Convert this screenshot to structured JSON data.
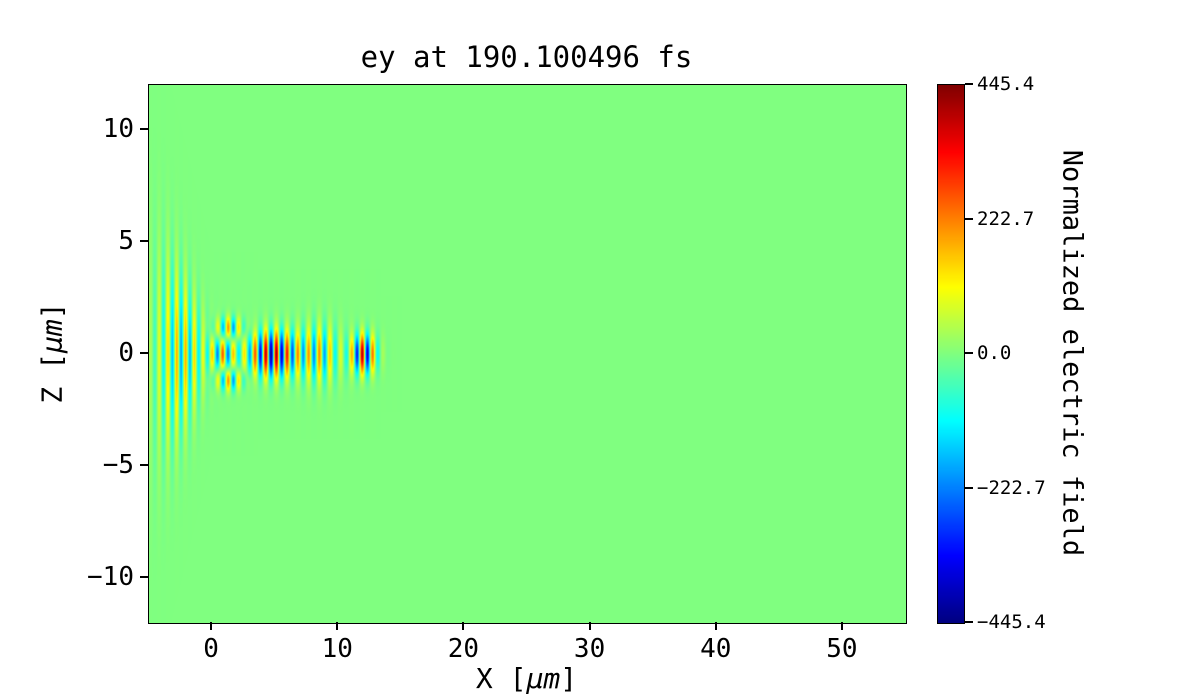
{
  "figure": {
    "title": "ey at 190.100496 fs",
    "xlabel": {
      "pre": "X [",
      "unit": "μm",
      "post": "]"
    },
    "ylabel": {
      "pre": "Z [",
      "unit": "μm",
      "post": "]"
    },
    "colorbar_label": "Normalized electric field"
  },
  "chart_data": {
    "type": "heatmap",
    "title": "ey at 190.100496 fs",
    "field_name": "ey",
    "time_fs": 190.100496,
    "xlabel": "X [μm]",
    "ylabel": "Z [μm]",
    "colorbar_label": "Normalized electric field",
    "colormap": "jet",
    "x_range": [
      -5,
      55
    ],
    "z_range": [
      -12,
      12
    ],
    "x_ticks": [
      0,
      10,
      20,
      30,
      40,
      50
    ],
    "x_tick_labels": [
      "0",
      "10",
      "20",
      "30",
      "40",
      "50"
    ],
    "z_ticks": [
      10,
      5,
      0,
      -5,
      -10
    ],
    "z_tick_labels": [
      "10",
      "5",
      "0",
      "−5",
      "−10"
    ],
    "value_range": [
      -445.4,
      445.4
    ],
    "colorbar_ticks": [
      445.4,
      222.7,
      0.0,
      -222.7,
      -445.4
    ],
    "colorbar_tick_labels": [
      "445.4",
      "222.7",
      "0.0",
      "−222.7",
      "−445.4"
    ],
    "background_value": 0.0,
    "grid": false,
    "field_model": {
      "description": "Laser pulse electric field ey: a strong oscillatory wavepacket (alternating red/blue half-cycle stripes, peak |ey| ≈ 445) centered on z = 0 spanning x ≈ 0–13 μm with maxima near x ≈ 4–6 μm and near the pulse front at x ≈ 11–13 μm, weak side lobes at z ≈ ±1.2 μm around x ≈ 1–2 μm, and a low-amplitude diverging fan of vertical stripes for x < 0 widening to |z| ≈ 4.5 μm; field ≈ 0 (green background) everywhere else.",
      "amplitudes_relative_to_max": true,
      "components": [
        {
          "name": "diverging-fan",
          "amp": 0.42,
          "x0": -2.4,
          "sx": 2.0,
          "wavelength": 0.7,
          "z0": 0,
          "sz": 1.5,
          "sz_slope": 0.75
        },
        {
          "name": "entry-pulse",
          "amp": 0.55,
          "x0": 0.9,
          "sx": 1.0,
          "wavelength": 0.85,
          "z0": 0,
          "sz": 0.7
        },
        {
          "name": "side-lobes",
          "amp": -0.5,
          "x0": 1.4,
          "sx": 1.2,
          "wavelength": 0.85,
          "z0": 1.15,
          "sz": 0.5,
          "abs_z": true
        },
        {
          "name": "main-pulse",
          "amp": 0.95,
          "x0": 4.8,
          "sx": 2.0,
          "wavelength": 0.85,
          "z0": 0,
          "sz": 1.0
        },
        {
          "name": "mid-section",
          "amp": 0.45,
          "x0": 8.5,
          "sx": 1.6,
          "wavelength": 0.85,
          "z0": 0,
          "sz": 1.25
        },
        {
          "name": "pulse-front",
          "amp": 0.9,
          "x0": 12.0,
          "sx": 1.0,
          "wavelength": 0.85,
          "z0": 0,
          "sz": 0.85
        }
      ]
    }
  }
}
